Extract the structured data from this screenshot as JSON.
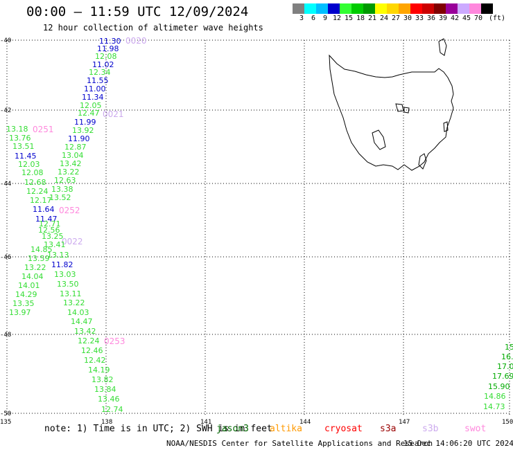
{
  "header": {
    "title": "00:00 – 11:59 UTC 12/09/2024",
    "subtitle": "12 hour collection of altimeter wave heights"
  },
  "colorbar": {
    "colors": [
      "#808080",
      "#00ffff",
      "#00bfff",
      "#0000cd",
      "#33ff33",
      "#00cc00",
      "#009900",
      "#ffff00",
      "#ffd700",
      "#ffa500",
      "#ff0000",
      "#cc0000",
      "#800000",
      "#990099",
      "#ccaaff",
      "#ff88dd",
      "#000000"
    ],
    "labels": [
      "3",
      "6",
      "9",
      "12",
      "15",
      "18",
      "21",
      "24",
      "27",
      "30",
      "33",
      "36",
      "39",
      "42",
      "45",
      "70"
    ],
    "unit": "(ft)"
  },
  "axes": {
    "lat_labels": [
      "-40",
      "-42",
      "-44",
      "-46",
      "-48",
      "-50"
    ],
    "lon_labels": [
      "135",
      "138",
      "141",
      "144",
      "147",
      "150"
    ]
  },
  "time_labels": [
    {
      "text": "0020",
      "color": "#ccaaee"
    },
    {
      "text": "0021",
      "color": "#ccaaee"
    },
    {
      "text": "0251",
      "color": "#ff88dd"
    },
    {
      "text": "0252",
      "color": "#ff88dd"
    },
    {
      "text": "0022",
      "color": "#ccaaee"
    },
    {
      "text": "0253",
      "color": "#ff88dd"
    }
  ],
  "wave_values": [
    {
      "text": "11.30",
      "color": "#0000cd"
    },
    {
      "text": "11.98",
      "color": "#0000cd"
    },
    {
      "text": "12.08",
      "color": "#33dd33"
    },
    {
      "text": "11.02",
      "color": "#0000cd"
    },
    {
      "text": "12.34",
      "color": "#33dd33"
    },
    {
      "text": "11.55",
      "color": "#0000cd"
    },
    {
      "text": "11.00",
      "color": "#0000cd"
    },
    {
      "text": "11.34",
      "color": "#0000cd"
    },
    {
      "text": "12.05",
      "color": "#33dd33"
    },
    {
      "text": "12.47",
      "color": "#33dd33"
    },
    {
      "text": "11.99",
      "color": "#0000cd"
    },
    {
      "text": "13.92",
      "color": "#33dd33"
    },
    {
      "text": "11.90",
      "color": "#0000cd"
    },
    {
      "text": "12.87",
      "color": "#33dd33"
    },
    {
      "text": "13.04",
      "color": "#33dd33"
    },
    {
      "text": "13.42",
      "color": "#33dd33"
    },
    {
      "text": "13.22",
      "color": "#33dd33"
    },
    {
      "text": "12.63",
      "color": "#33dd33"
    },
    {
      "text": "13.38",
      "color": "#33dd33"
    },
    {
      "text": "13.52",
      "color": "#33dd33"
    },
    {
      "text": "13.18",
      "color": "#33dd33"
    },
    {
      "text": "13.76",
      "color": "#33dd33"
    },
    {
      "text": "13.51",
      "color": "#33dd33"
    },
    {
      "text": "11.45",
      "color": "#0000cd"
    },
    {
      "text": "12.03",
      "color": "#33dd33"
    },
    {
      "text": "12.08",
      "color": "#33dd33"
    },
    {
      "text": "12.68",
      "color": "#33dd33"
    },
    {
      "text": "12.24",
      "color": "#33dd33"
    },
    {
      "text": "12.17",
      "color": "#33dd33"
    },
    {
      "text": "11.64",
      "color": "#0000cd"
    },
    {
      "text": "11.47",
      "color": "#0000cd"
    },
    {
      "text": "12.71",
      "color": "#33dd33"
    },
    {
      "text": "12.56",
      "color": "#33dd33"
    },
    {
      "text": "13.25",
      "color": "#33dd33"
    },
    {
      "text": "14.85",
      "color": "#33dd33"
    },
    {
      "text": "13.41",
      "color": "#33dd33"
    },
    {
      "text": "13.13",
      "color": "#33dd33"
    },
    {
      "text": "13.59",
      "color": "#33dd33"
    },
    {
      "text": "11.82",
      "color": "#0000cd"
    },
    {
      "text": "13.22",
      "color": "#33dd33"
    },
    {
      "text": "13.03",
      "color": "#33dd33"
    },
    {
      "text": "14.04",
      "color": "#33dd33"
    },
    {
      "text": "13.50",
      "color": "#33dd33"
    },
    {
      "text": "14.01",
      "color": "#33dd33"
    },
    {
      "text": "13.11",
      "color": "#33dd33"
    },
    {
      "text": "14.29",
      "color": "#33dd33"
    },
    {
      "text": "13.22",
      "color": "#33dd33"
    },
    {
      "text": "13.35",
      "color": "#33dd33"
    },
    {
      "text": "14.03",
      "color": "#33dd33"
    },
    {
      "text": "13.97",
      "color": "#33dd33"
    },
    {
      "text": "14.47",
      "color": "#33dd33"
    },
    {
      "text": "13.42",
      "color": "#33dd33"
    },
    {
      "text": "12.24",
      "color": "#33dd33"
    },
    {
      "text": "12.46",
      "color": "#33dd33"
    },
    {
      "text": "12.42",
      "color": "#33dd33"
    },
    {
      "text": "14.19",
      "color": "#33dd33"
    },
    {
      "text": "13.82",
      "color": "#33dd33"
    },
    {
      "text": "13.84",
      "color": "#33dd33"
    },
    {
      "text": "13.46",
      "color": "#33dd33"
    },
    {
      "text": "12.74",
      "color": "#33dd33"
    },
    {
      "text": "15.",
      "color": "#00aa00"
    },
    {
      "text": "16.",
      "color": "#00aa00"
    },
    {
      "text": "17.0",
      "color": "#00aa00"
    },
    {
      "text": "17.69",
      "color": "#00aa00"
    },
    {
      "text": "15.90",
      "color": "#00aa00"
    },
    {
      "text": "14.86",
      "color": "#33dd33"
    },
    {
      "text": "14.73",
      "color": "#33dd33"
    }
  ],
  "footer": {
    "note": "note: 1) Time is in UTC; 2) SWH is in feet",
    "satellites": [
      {
        "name": "jason3",
        "color": "#006600"
      },
      {
        "name": "altika",
        "color": "#ff9900"
      },
      {
        "name": "cryosat",
        "color": "#ff0000"
      },
      {
        "name": "s3a",
        "color": "#990000"
      },
      {
        "name": "s3b",
        "color": "#ccaaee"
      },
      {
        "name": "swot",
        "color": "#ff88dd"
      }
    ],
    "credit": "NOAA/NESDIS Center for Satellite Applications and Research",
    "generated": "15 Dec 14:06:20 UTC 2024"
  }
}
